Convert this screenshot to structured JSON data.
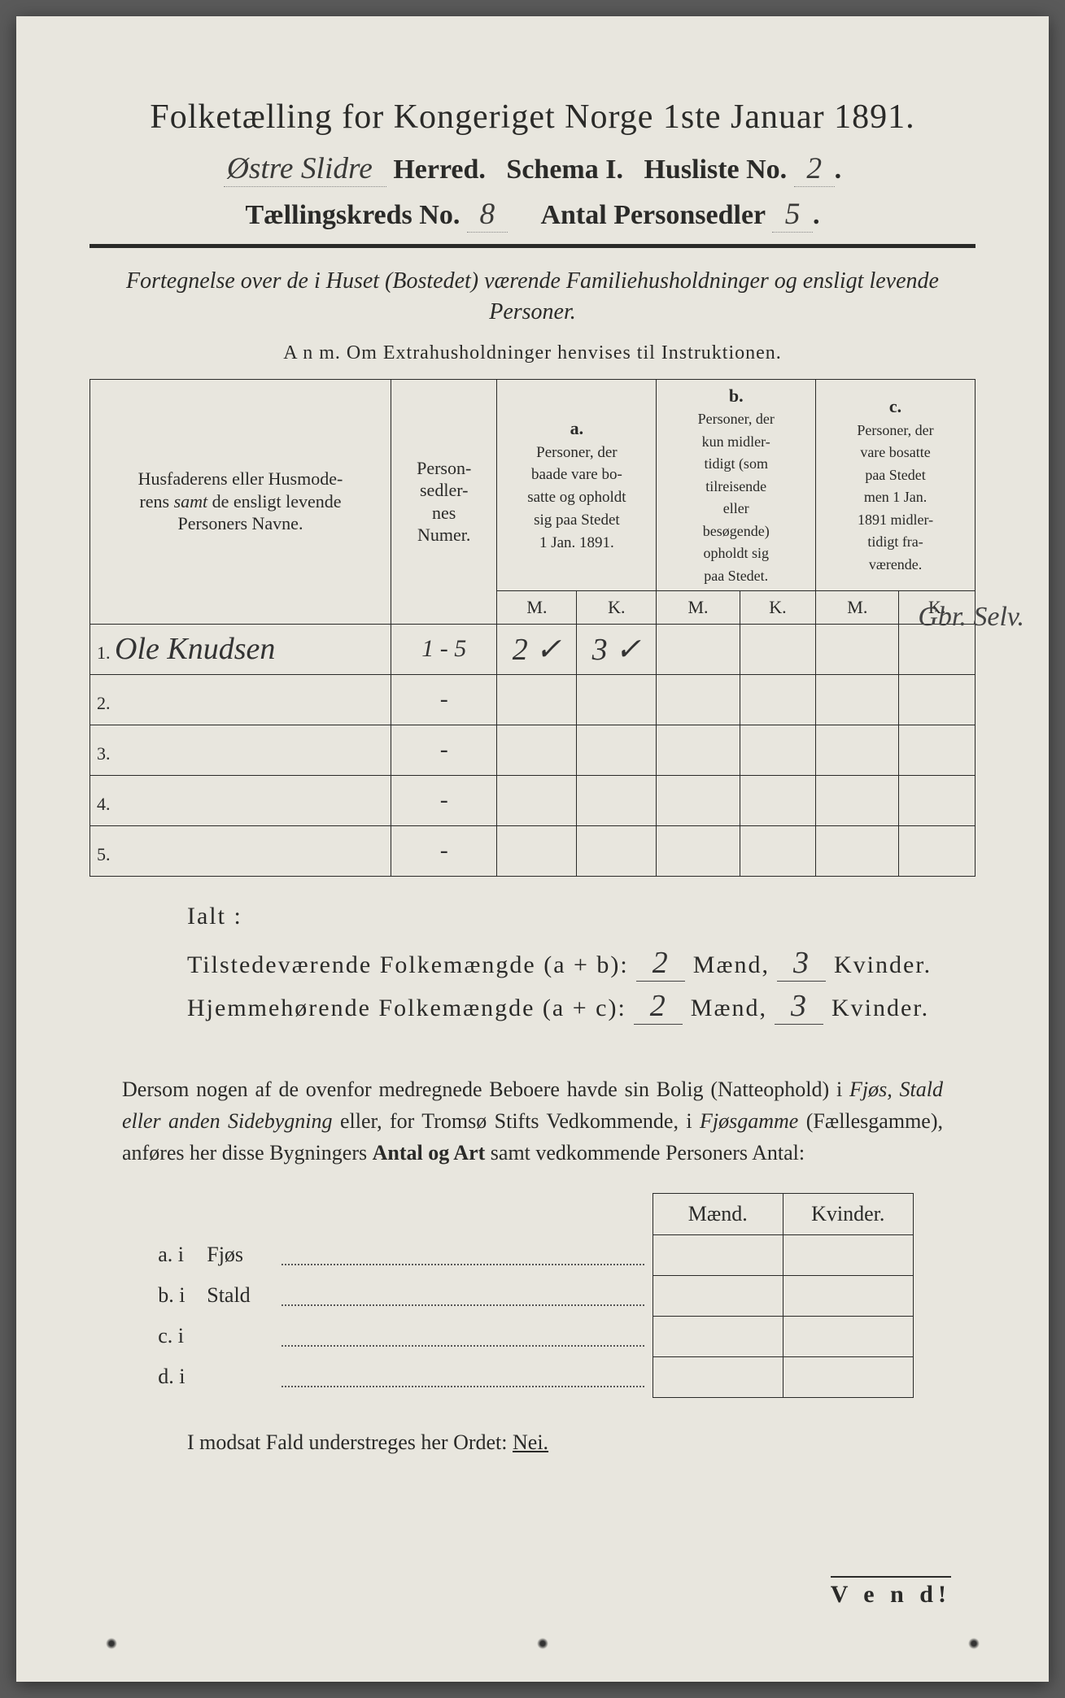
{
  "title": "Folketælling for Kongeriget Norge 1ste Januar 1891.",
  "herred_value": "Østre Slidre",
  "herred_label": "Herred.",
  "schema_label": "Schema I.",
  "husliste_label": "Husliste No.",
  "husliste_value": "2",
  "kreds_label": "Tællingskreds No.",
  "kreds_value": "8",
  "antal_label": "Antal Personsedler",
  "antal_value": "5",
  "desc": "Fortegnelse over de i Huset (Bostedet) værende Familiehusholdninger og ensligt levende Personer.",
  "anm": "A n m.  Om Extrahusholdninger henvises til Instruktionen.",
  "headers": {
    "name": "Husfaderens eller Husmoderens samt de ensligt levende Personers Navne.",
    "num": "Person-sedler-nes Numer.",
    "a_label": "a.",
    "a": "Personer, der baade vare bosatte og opholdt sig paa Stedet 1 Jan. 1891.",
    "b_label": "b.",
    "b": "Personer, der kun midlertidigt (som tilreisende eller besøgende) opholdt sig paa Stedet.",
    "c_label": "c.",
    "c": "Personer, der vare bosatte paa Stedet men 1 Jan. 1891 midlertidigt fraværende.",
    "m": "M.",
    "k": "K."
  },
  "rows": [
    {
      "n": "1.",
      "name": "Ole Knudsen",
      "num": "1 - 5",
      "am": "2 ✓",
      "ak": "3 ✓",
      "bm": "",
      "bk": "",
      "cm": "",
      "ck": ""
    },
    {
      "n": "2.",
      "name": "",
      "num": "-",
      "am": "",
      "ak": "",
      "bm": "",
      "bk": "",
      "cm": "",
      "ck": ""
    },
    {
      "n": "3.",
      "name": "",
      "num": "-",
      "am": "",
      "ak": "",
      "bm": "",
      "bk": "",
      "cm": "",
      "ck": ""
    },
    {
      "n": "4.",
      "name": "",
      "num": "-",
      "am": "",
      "ak": "",
      "bm": "",
      "bk": "",
      "cm": "",
      "ck": ""
    },
    {
      "n": "5.",
      "name": "",
      "num": "-",
      "am": "",
      "ak": "",
      "bm": "",
      "bk": "",
      "cm": "",
      "ck": ""
    }
  ],
  "margin_note": "Gbr. Selv.",
  "ialt_label": "Ialt :",
  "totals1_label": "Tilstedeværende Folkemængde (a + b):",
  "totals1_m": "2",
  "totals1_k": "3",
  "totals2_label": "Hjemmehørende Folkemængde (a + c):",
  "totals2_m": "2",
  "totals2_k": "3",
  "maend": "Mænd,",
  "kvinder": "Kvinder.",
  "para": "Dersom nogen af de ovenfor medregnede Beboere havde sin Bolig (Natteophold) i Fjøs, Stald eller anden Sidebygning eller, for Tromsø Stifts Vedkommende, i Fjøsgamme (Fællesgamme), anføres her disse Bygningers Antal og Art samt vedkommende Personers Antal:",
  "side_headers": {
    "m": "Mænd.",
    "k": "Kvinder."
  },
  "side_rows": [
    {
      "lab": "a.  i",
      "word": "Fjøs"
    },
    {
      "lab": "b.  i",
      "word": "Stald"
    },
    {
      "lab": "c.  i",
      "word": ""
    },
    {
      "lab": "d.  i",
      "word": ""
    }
  ],
  "nei": "I modsat Fald understreges her Ordet: Nei.",
  "vend": "V e n d!"
}
